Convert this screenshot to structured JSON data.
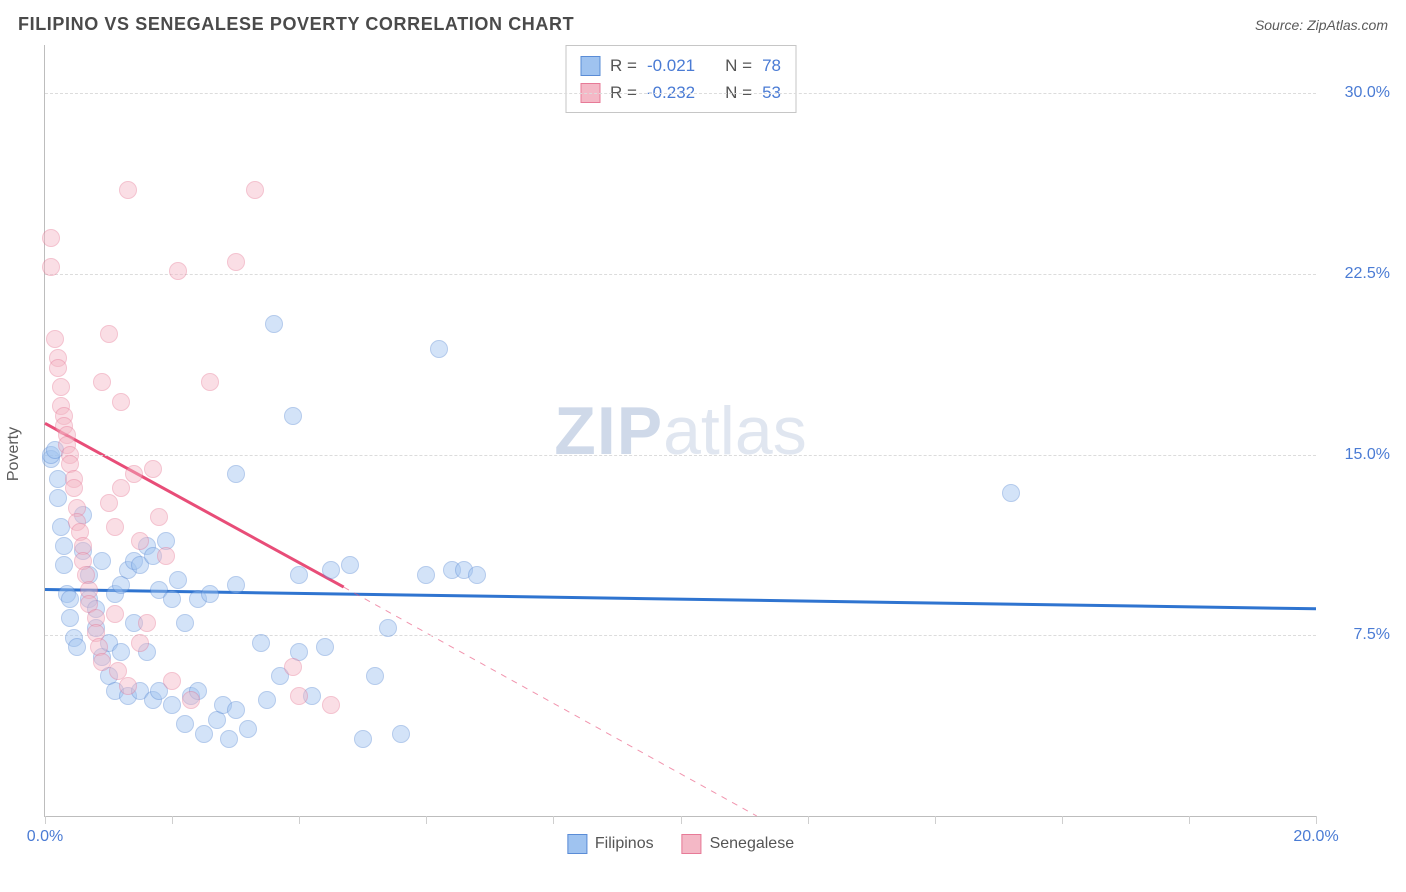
{
  "header": {
    "title": "FILIPINO VS SENEGALESE POVERTY CORRELATION CHART",
    "source": "Source: ZipAtlas.com"
  },
  "watermark": {
    "zip": "ZIP",
    "atlas": "atlas"
  },
  "chart": {
    "type": "scatter",
    "background_color": "#ffffff",
    "grid_color": "#dcdcdc",
    "axis_color": "#bdbdbd",
    "label_color": "#4a7bd4",
    "ylabel": "Poverty",
    "xlim": [
      0.0,
      20.0
    ],
    "ylim": [
      0.0,
      32.0
    ],
    "y_ticks": [
      7.5,
      15.0,
      22.5,
      30.0
    ],
    "y_tick_labels": [
      "7.5%",
      "15.0%",
      "22.5%",
      "30.0%"
    ],
    "x_ticks": [
      0,
      2,
      4,
      6,
      8,
      10,
      12,
      14,
      16,
      18,
      20
    ],
    "x_tick_labels": {
      "0": "0.0%",
      "20": "20.0%"
    },
    "point_radius": 9,
    "point_opacity": 0.45,
    "series": [
      {
        "name": "Filipinos",
        "fill": "#9fc3f0",
        "stroke": "#5a8cd6",
        "R": "-0.021",
        "N": "78",
        "trend": {
          "x1": 0.0,
          "y1": 9.4,
          "x2": 20.0,
          "y2": 8.6,
          "color": "#2f74d0",
          "width": 3,
          "dashed_extend": false
        },
        "points": [
          [
            0.1,
            14.8
          ],
          [
            0.1,
            15.0
          ],
          [
            0.15,
            15.2
          ],
          [
            0.2,
            14.0
          ],
          [
            0.2,
            13.2
          ],
          [
            0.25,
            12.0
          ],
          [
            0.3,
            11.2
          ],
          [
            0.3,
            10.4
          ],
          [
            0.35,
            9.2
          ],
          [
            0.4,
            9.0
          ],
          [
            0.4,
            8.2
          ],
          [
            0.45,
            7.4
          ],
          [
            0.5,
            7.0
          ],
          [
            0.6,
            12.5
          ],
          [
            0.6,
            11.0
          ],
          [
            0.7,
            10.0
          ],
          [
            0.7,
            9.0
          ],
          [
            0.8,
            8.6
          ],
          [
            0.8,
            7.8
          ],
          [
            0.9,
            6.6
          ],
          [
            0.9,
            10.6
          ],
          [
            1.0,
            7.2
          ],
          [
            1.0,
            5.8
          ],
          [
            1.1,
            5.2
          ],
          [
            1.1,
            9.2
          ],
          [
            1.2,
            9.6
          ],
          [
            1.2,
            6.8
          ],
          [
            1.3,
            10.2
          ],
          [
            1.3,
            5.0
          ],
          [
            1.4,
            10.6
          ],
          [
            1.4,
            8.0
          ],
          [
            1.5,
            10.4
          ],
          [
            1.5,
            5.2
          ],
          [
            1.6,
            11.2
          ],
          [
            1.6,
            6.8
          ],
          [
            1.7,
            10.8
          ],
          [
            1.7,
            4.8
          ],
          [
            1.8,
            5.2
          ],
          [
            1.8,
            9.4
          ],
          [
            1.9,
            11.4
          ],
          [
            2.0,
            9.0
          ],
          [
            2.0,
            4.6
          ],
          [
            2.1,
            9.8
          ],
          [
            2.2,
            3.8
          ],
          [
            2.2,
            8.0
          ],
          [
            2.3,
            5.0
          ],
          [
            2.4,
            5.2
          ],
          [
            2.4,
            9.0
          ],
          [
            2.5,
            3.4
          ],
          [
            2.6,
            9.2
          ],
          [
            2.7,
            4.0
          ],
          [
            2.8,
            4.6
          ],
          [
            2.9,
            3.2
          ],
          [
            3.0,
            9.6
          ],
          [
            3.0,
            4.4
          ],
          [
            3.2,
            3.6
          ],
          [
            3.4,
            7.2
          ],
          [
            3.5,
            4.8
          ],
          [
            3.6,
            20.4
          ],
          [
            3.7,
            5.8
          ],
          [
            3.9,
            16.6
          ],
          [
            4.0,
            10.0
          ],
          [
            4.0,
            6.8
          ],
          [
            4.2,
            5.0
          ],
          [
            4.4,
            7.0
          ],
          [
            4.5,
            10.2
          ],
          [
            4.8,
            10.4
          ],
          [
            5.0,
            3.2
          ],
          [
            5.2,
            5.8
          ],
          [
            5.4,
            7.8
          ],
          [
            5.6,
            3.4
          ],
          [
            6.0,
            10.0
          ],
          [
            6.2,
            19.4
          ],
          [
            6.4,
            10.2
          ],
          [
            6.6,
            10.2
          ],
          [
            6.8,
            10.0
          ],
          [
            15.2,
            13.4
          ],
          [
            3.0,
            14.2
          ]
        ]
      },
      {
        "name": "Senegalese",
        "fill": "#f4b8c6",
        "stroke": "#e77a97",
        "R": "-0.232",
        "N": "53",
        "trend": {
          "x1": 0.0,
          "y1": 16.3,
          "x2": 4.7,
          "y2": 9.5,
          "color": "#e84d78",
          "width": 3,
          "dashed_extend": true,
          "dx2": 11.2,
          "dy2": 0.0
        },
        "points": [
          [
            0.1,
            24.0
          ],
          [
            0.1,
            22.8
          ],
          [
            0.15,
            19.8
          ],
          [
            0.2,
            19.0
          ],
          [
            0.2,
            18.6
          ],
          [
            0.25,
            17.8
          ],
          [
            0.25,
            17.0
          ],
          [
            0.3,
            16.6
          ],
          [
            0.3,
            16.2
          ],
          [
            0.35,
            15.8
          ],
          [
            0.35,
            15.4
          ],
          [
            0.4,
            15.0
          ],
          [
            0.4,
            14.6
          ],
          [
            0.45,
            14.0
          ],
          [
            0.45,
            13.6
          ],
          [
            0.5,
            12.8
          ],
          [
            0.5,
            12.2
          ],
          [
            0.55,
            11.8
          ],
          [
            0.6,
            11.2
          ],
          [
            0.6,
            10.6
          ],
          [
            0.65,
            10.0
          ],
          [
            0.7,
            9.4
          ],
          [
            0.7,
            8.8
          ],
          [
            0.8,
            8.2
          ],
          [
            0.8,
            7.6
          ],
          [
            0.85,
            7.0
          ],
          [
            0.9,
            6.4
          ],
          [
            0.9,
            18.0
          ],
          [
            1.0,
            20.0
          ],
          [
            1.0,
            13.0
          ],
          [
            1.1,
            12.0
          ],
          [
            1.1,
            8.4
          ],
          [
            1.15,
            6.0
          ],
          [
            1.2,
            13.6
          ],
          [
            1.2,
            17.2
          ],
          [
            1.3,
            26.0
          ],
          [
            1.3,
            5.4
          ],
          [
            1.4,
            14.2
          ],
          [
            1.5,
            11.4
          ],
          [
            1.5,
            7.2
          ],
          [
            1.6,
            8.0
          ],
          [
            1.7,
            14.4
          ],
          [
            1.8,
            12.4
          ],
          [
            1.9,
            10.8
          ],
          [
            2.0,
            5.6
          ],
          [
            2.1,
            22.6
          ],
          [
            2.3,
            4.8
          ],
          [
            2.6,
            18.0
          ],
          [
            3.0,
            23.0
          ],
          [
            3.3,
            26.0
          ],
          [
            3.9,
            6.2
          ],
          [
            4.0,
            5.0
          ],
          [
            4.5,
            4.6
          ]
        ]
      }
    ],
    "legend_top_labels": {
      "R": "R =",
      "N": "N ="
    },
    "legend_bottom": [
      "Filipinos",
      "Senegalese"
    ]
  }
}
